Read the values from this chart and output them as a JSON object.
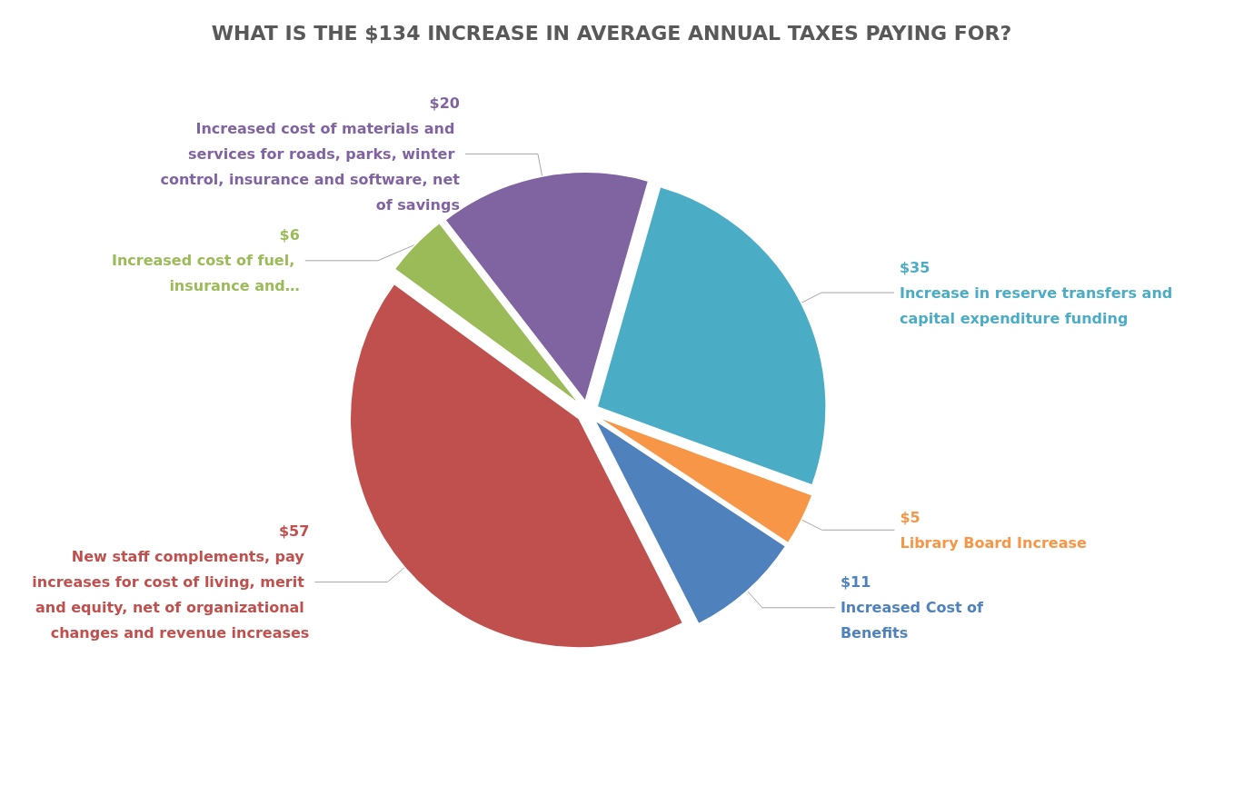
{
  "chart_data": {
    "type": "pie",
    "title": "WHAT IS THE $134 INCREASE IN AVERAGE ANNUAL TAXES PAYING FOR?",
    "categories": [
      "Increase in reserve transfers and capital expenditure funding",
      "Library Board Increase",
      "Increased Cost of Benefits",
      "New staff complements, pay increases for cost of living, merit and equity, net of organizational changes and revenue increases",
      "Increased cost of fuel, insurance and…",
      "Increased cost of materials and services for roads, parks, winter control, insurance and software, net of savings"
    ],
    "values": [
      35,
      5,
      11,
      57,
      6,
      20
    ],
    "value_labels": [
      "$35",
      "$5",
      "$11",
      "$57",
      "$6",
      "$20"
    ],
    "colors": [
      "#4bacc6",
      "#f79646",
      "#4f81bd",
      "#c0504d",
      "#9bbb59",
      "#8064a2"
    ],
    "legend": false
  }
}
